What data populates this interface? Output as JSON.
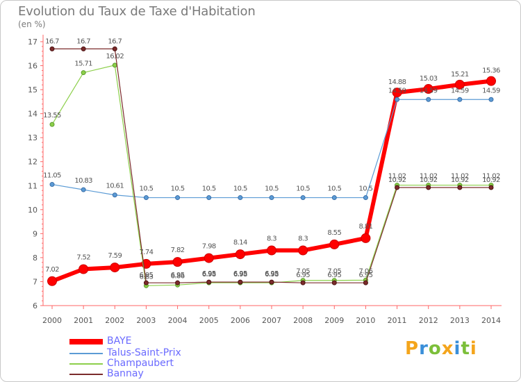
{
  "chart_data": {
    "type": "line",
    "title": "Evolution du Taux de Taxe d'Habitation",
    "subtitle": "(en %)",
    "x": [
      "2000",
      "2001",
      "2002",
      "2003",
      "2004",
      "2005",
      "2006",
      "2007",
      "2008",
      "2009",
      "2010",
      "2011",
      "2012",
      "2013",
      "2014"
    ],
    "ylim": [
      6,
      17
    ],
    "yticks": [
      "6",
      "7",
      "8",
      "9",
      "10",
      "11",
      "12",
      "13",
      "14",
      "15",
      "16",
      "17"
    ],
    "grid": false,
    "legend_position": "bottom-left",
    "series": [
      {
        "name": "BAYE",
        "color": "#ff0000",
        "values": [
          7.02,
          7.52,
          7.59,
          7.74,
          7.82,
          7.98,
          8.14,
          8.3,
          8.3,
          8.55,
          8.81,
          14.88,
          15.03,
          15.21,
          15.36
        ],
        "labels": [
          "7.02",
          "7.52",
          "7.59",
          "7.74",
          "7.82",
          "7.98",
          "8.14",
          "8.3",
          "8.3",
          "8.55",
          "8.81",
          "14.88",
          "15.03",
          "15.21",
          "15.36"
        ]
      },
      {
        "name": "Talus-Saint-Prix",
        "color": "#5b9bd5",
        "values": [
          11.05,
          10.83,
          10.61,
          10.5,
          10.5,
          10.5,
          10.5,
          10.5,
          10.5,
          10.5,
          10.5,
          14.59,
          14.59,
          14.59,
          14.59
        ],
        "labels": [
          "11.05",
          "10.83",
          "10.61",
          "10.5",
          "10.5",
          "10.5",
          "10.5",
          "10.5",
          "10.5",
          "10.5",
          "10.5",
          "14.59",
          "14.59",
          "14.59",
          "14.59"
        ]
      },
      {
        "name": "Champaubert",
        "color": "#8ccf4a",
        "values": [
          13.55,
          15.71,
          16.02,
          6.83,
          6.86,
          6.95,
          6.95,
          6.95,
          7.05,
          7.05,
          7.06,
          11.02,
          11.02,
          11.02,
          11.02
        ],
        "labels": [
          "13.55",
          "15.71",
          "16.02",
          "6.83",
          "6.86",
          "6.95",
          "6.95",
          "6.95",
          "7.05",
          "7.05",
          "7.06",
          "11.02",
          "11.02",
          "11.02",
          "11.02"
        ]
      },
      {
        "name": "Bannay",
        "color": "#7b2b2b",
        "values": [
          16.7,
          16.7,
          16.7,
          6.95,
          6.95,
          6.98,
          6.98,
          6.98,
          6.95,
          6.95,
          6.95,
          10.92,
          10.92,
          10.92,
          10.92
        ],
        "labels": [
          "16.7",
          "16.7",
          "16.7",
          "6.95",
          "6.95",
          "6.98",
          "6.98",
          "6.98",
          "6.95",
          "6.95",
          "6.95",
          "10.92",
          "10.92",
          "10.92",
          "10.92"
        ]
      }
    ]
  },
  "logo": {
    "letters": [
      "P",
      "r",
      "o",
      "x",
      "i",
      "t",
      "i"
    ],
    "colors": [
      "#f4a51c",
      "#3a8fd9",
      "#7cbf3a",
      "#f4a51c",
      "#3a8fd9",
      "#7cbf3a",
      "#f4a51c"
    ]
  }
}
